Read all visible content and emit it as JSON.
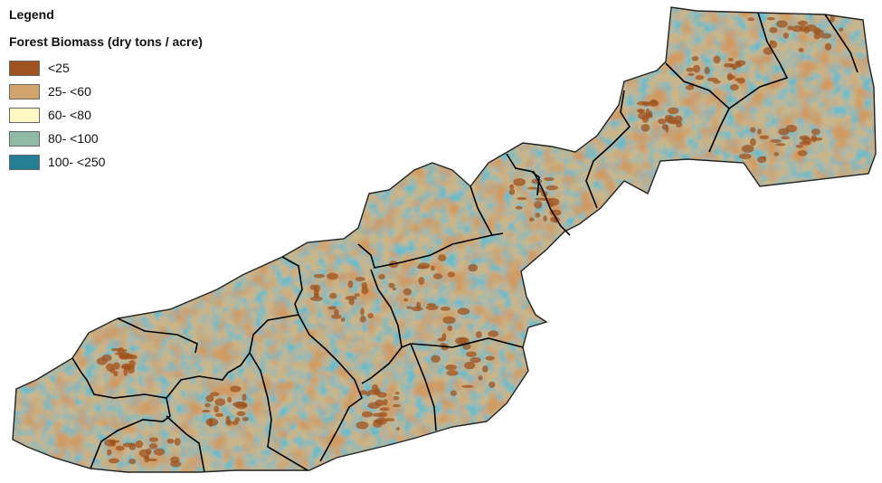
{
  "legend": {
    "title": "Legend",
    "subtitle": "Forest Biomass (dry tons / acre)",
    "classes": [
      {
        "label": "<25",
        "color": "#a0531f"
      },
      {
        "label": "25- <60",
        "color": "#d2a56e"
      },
      {
        "label": "60- <80",
        "color": "#fdf8c4"
      },
      {
        "label": "80- <100",
        "color": "#8fbba6"
      },
      {
        "label": "100- <250",
        "color": "#247f94"
      }
    ]
  },
  "map": {
    "boundary_color": "#000000",
    "base_color": "#c9b58a"
  }
}
